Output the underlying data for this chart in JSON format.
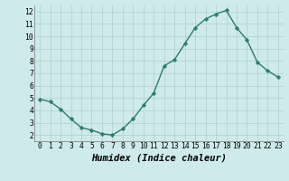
{
  "x": [
    0,
    1,
    2,
    3,
    4,
    5,
    6,
    7,
    8,
    9,
    10,
    11,
    12,
    13,
    14,
    15,
    16,
    17,
    18,
    19,
    20,
    21,
    22,
    23
  ],
  "y": [
    4.9,
    4.7,
    4.1,
    3.3,
    2.6,
    2.4,
    2.1,
    2.0,
    2.5,
    3.3,
    4.4,
    5.4,
    7.6,
    8.1,
    9.4,
    10.7,
    11.4,
    11.8,
    12.1,
    10.7,
    9.7,
    7.9,
    7.2,
    6.7
  ],
  "line_color": "#2e7d6e",
  "marker": "D",
  "marker_size": 2.2,
  "bg_color": "#ceeaea",
  "grid_color": "#aed0d0",
  "xlabel": "Humidex (Indice chaleur)",
  "ylim": [
    1.5,
    12.5
  ],
  "xlim": [
    -0.5,
    23.5
  ],
  "yticks": [
    2,
    3,
    4,
    5,
    6,
    7,
    8,
    9,
    10,
    11,
    12
  ],
  "xticks": [
    0,
    1,
    2,
    3,
    4,
    5,
    6,
    7,
    8,
    9,
    10,
    11,
    12,
    13,
    14,
    15,
    16,
    17,
    18,
    19,
    20,
    21,
    22,
    23
  ],
  "tick_fontsize": 5.8,
  "xlabel_fontsize": 7.5,
  "linewidth": 1.0
}
